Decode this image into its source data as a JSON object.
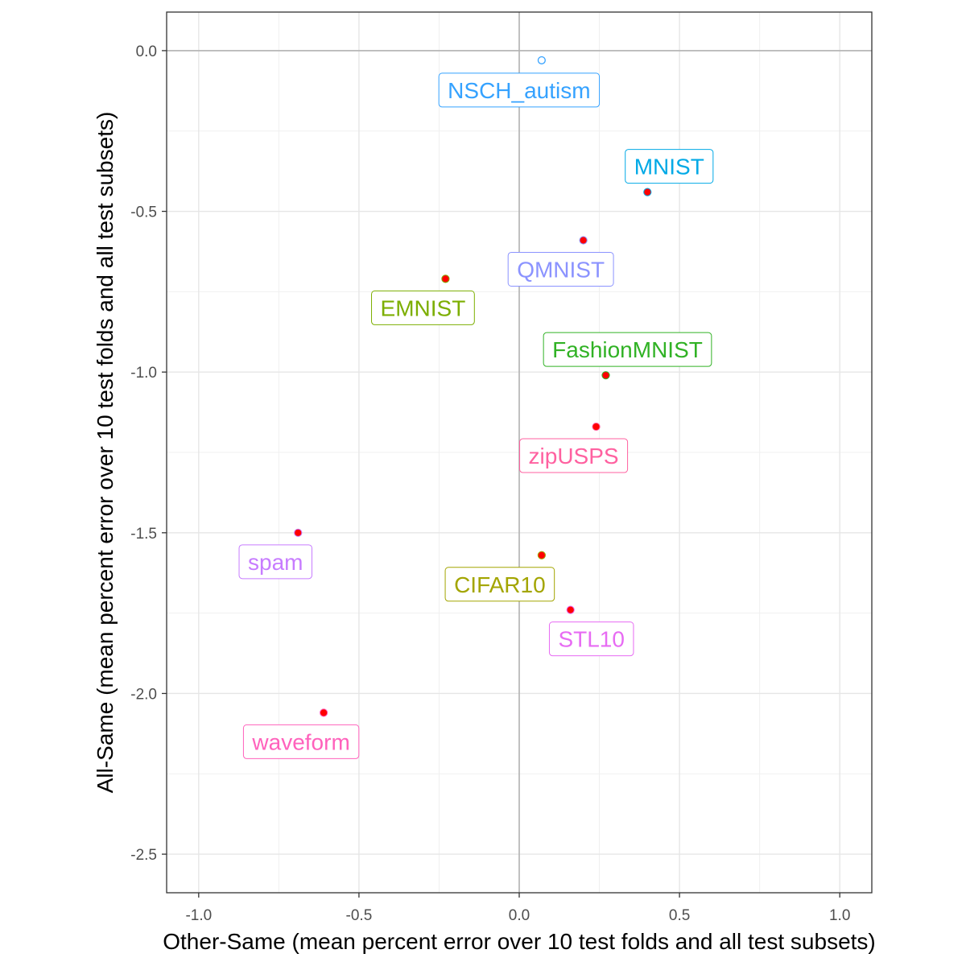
{
  "chart_data": {
    "type": "scatter",
    "xlabel": "Other-Same (mean percent error over 10 test folds and all test subsets)",
    "ylabel": "All-Same (mean percent error over 10 test folds and all test subsets)",
    "xlim": [
      -1.1,
      1.1
    ],
    "ylim": [
      -2.62,
      0.12
    ],
    "x_ticks": [
      -1.0,
      -0.5,
      0.0,
      0.5,
      1.0
    ],
    "x_tick_labels": [
      "-1.0",
      "-0.5",
      "0.0",
      "0.5",
      "1.0"
    ],
    "y_ticks": [
      0.0,
      -0.5,
      -1.0,
      -1.5,
      -2.0,
      -2.5
    ],
    "y_tick_labels": [
      "0.0",
      "-0.5",
      "-1.0",
      "-1.5",
      "-2.0",
      "-2.5"
    ],
    "grid": true,
    "reference_lines": {
      "x": 0,
      "y": 0,
      "color": "#b3b3b3"
    },
    "points": [
      {
        "label": "NSCH_autism",
        "x": 0.07,
        "y": -0.03,
        "color": "#35A2FF",
        "filled": false
      },
      {
        "label": "MNIST",
        "x": 0.4,
        "y": -0.44,
        "color": "#00A9E6",
        "filled": true
      },
      {
        "label": "QMNIST",
        "x": 0.2,
        "y": -0.59,
        "color": "#8B93FF",
        "filled": true
      },
      {
        "label": "EMNIST",
        "x": -0.23,
        "y": -0.71,
        "color": "#7CAE00",
        "filled": true
      },
      {
        "label": "FashionMNIST",
        "x": 0.27,
        "y": -1.01,
        "color": "#31B225",
        "filled": true
      },
      {
        "label": "zipUSPS",
        "x": 0.24,
        "y": -1.17,
        "color": "#FF61A0",
        "filled": true
      },
      {
        "label": "spam",
        "x": -0.69,
        "y": -1.5,
        "color": "#C77CFF",
        "filled": true
      },
      {
        "label": "CIFAR10",
        "x": 0.07,
        "y": -1.57,
        "color": "#A3A500",
        "filled": true
      },
      {
        "label": "STL10",
        "x": 0.16,
        "y": -1.74,
        "color": "#E76BF3",
        "filled": true
      },
      {
        "label": "waveform",
        "x": -0.61,
        "y": -2.06,
        "color": "#FF62BC",
        "filled": true
      }
    ],
    "point_fill_color": "#FF0000"
  }
}
